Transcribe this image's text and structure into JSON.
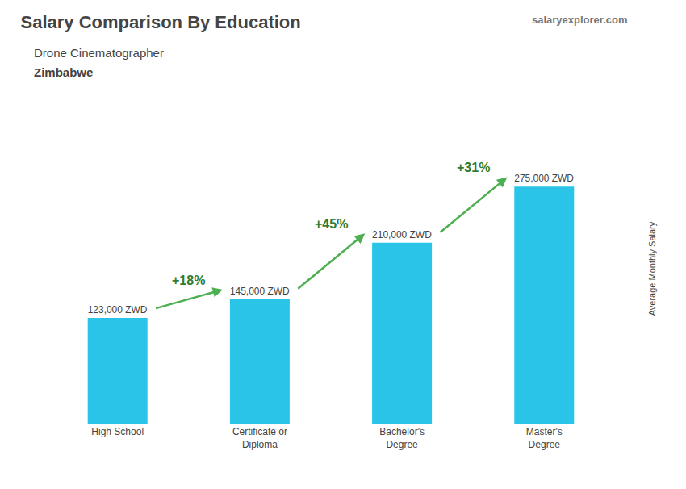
{
  "chart_data": {
    "type": "bar",
    "title": "Salary Comparison By Education",
    "subtitle": [
      "Drone Cinematographer",
      "Zimbabwe"
    ],
    "watermark": [
      "salary",
      "explorer",
      ".com"
    ],
    "ylabel": "Average Monthly Salary",
    "categories": [
      "High School",
      "Certificate or\nDiploma",
      "Bachelor's\nDegree",
      "Master's\nDegree"
    ],
    "values": [
      123000,
      145000,
      210000,
      275000
    ],
    "value_labels": [
      "123,000 ZWD",
      "145,000 ZWD",
      "210,000 ZWD",
      "275,000 ZWD"
    ],
    "data_labels": true,
    "annotations": [
      "+18%",
      "+45%",
      "+31%"
    ],
    "color": "#29c4e8",
    "ylim": [
      0,
      360000
    ],
    "yticks": [],
    "tick_labels": "x",
    "grid": false
  }
}
